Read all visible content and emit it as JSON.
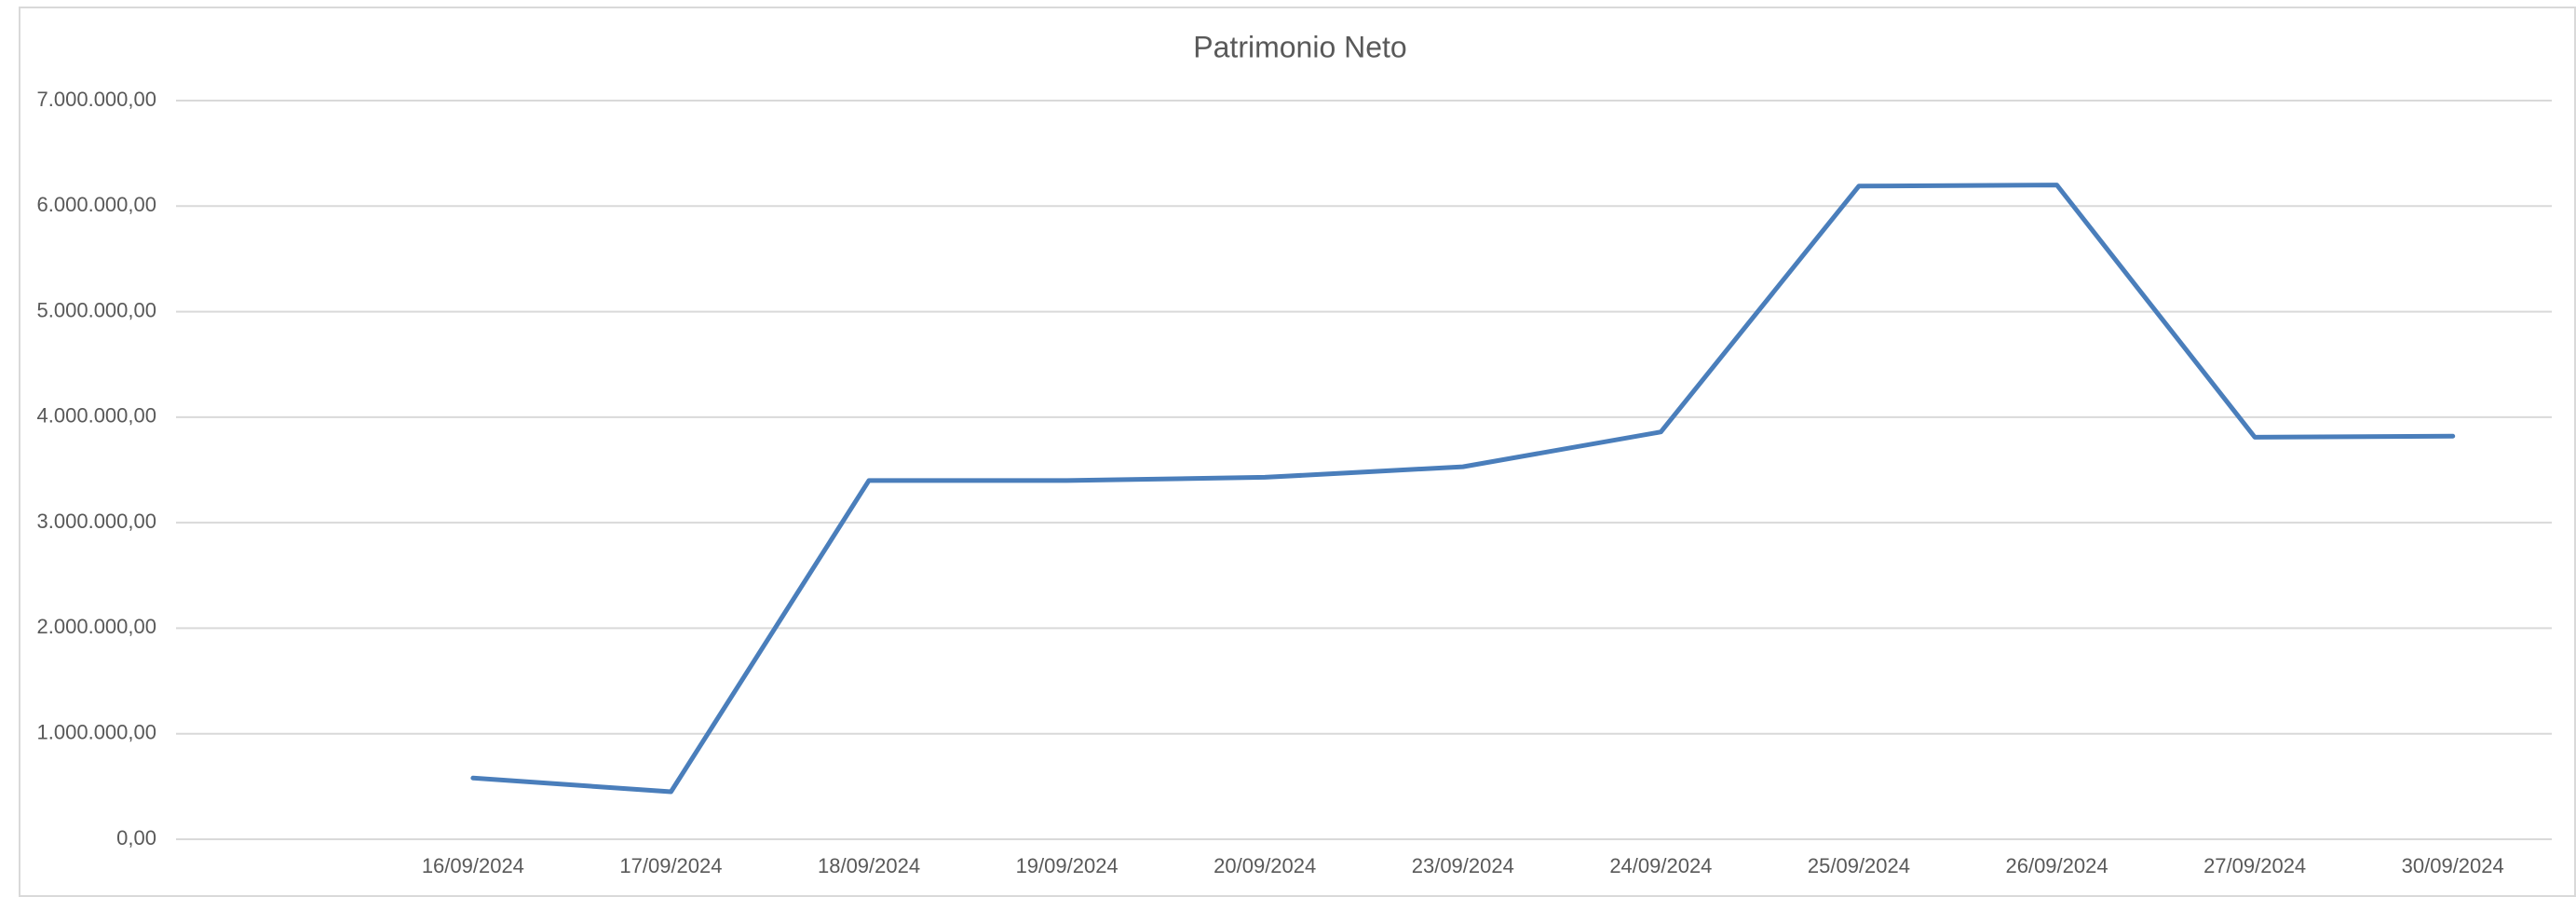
{
  "chart_data": {
    "type": "line",
    "title": "Patrimonio Neto",
    "categories": [
      null,
      "16/09/2024",
      "17/09/2024",
      "18/09/2024",
      "19/09/2024",
      "20/09/2024",
      "23/09/2024",
      "24/09/2024",
      "25/09/2024",
      "26/09/2024",
      "27/09/2024",
      "30/09/2024"
    ],
    "series": [
      {
        "name": "Patrimonio Neto",
        "color": "#4a7ebb",
        "values": [
          null,
          580000,
          450000,
          3400000,
          3400000,
          3430000,
          3530000,
          3860000,
          6190000,
          6200000,
          3810000,
          3820000
        ]
      }
    ],
    "ylim": [
      0,
      7000000
    ],
    "yticks": [
      {
        "value": 0,
        "label": "0,00"
      },
      {
        "value": 1000000,
        "label": "1.000.000,00"
      },
      {
        "value": 2000000,
        "label": "2.000.000,00"
      },
      {
        "value": 3000000,
        "label": "3.000.000,00"
      },
      {
        "value": 4000000,
        "label": "4.000.000,00"
      },
      {
        "value": 5000000,
        "label": "5.000.000,00"
      },
      {
        "value": 6000000,
        "label": "6.000.000,00"
      },
      {
        "value": 7000000,
        "label": "7.000.000,00"
      }
    ],
    "grid": true
  }
}
